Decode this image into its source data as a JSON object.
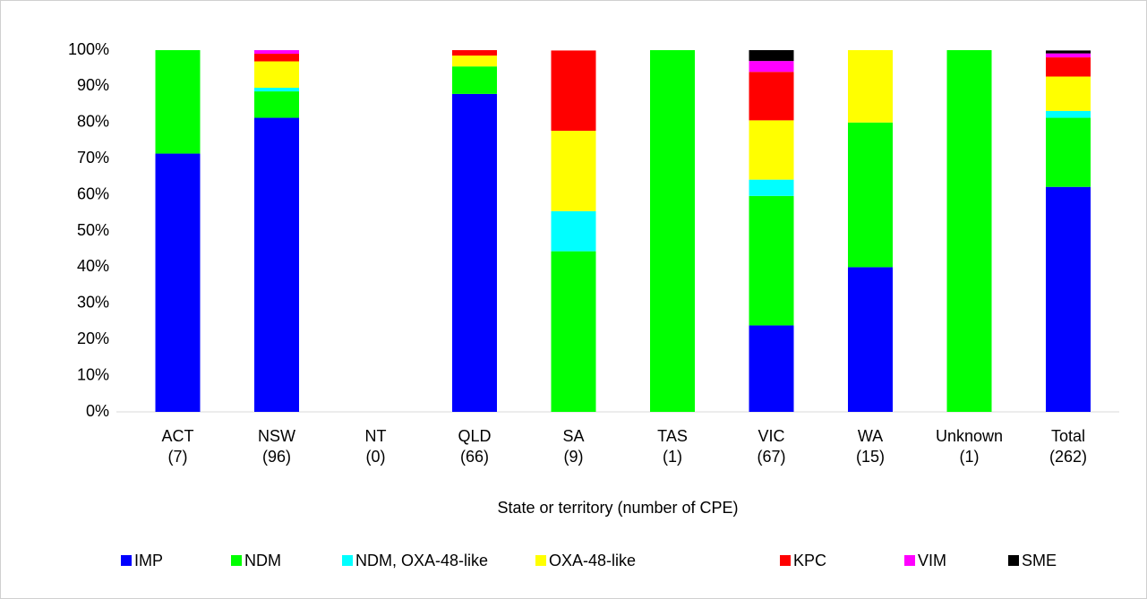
{
  "chart_data": {
    "type": "stacked_bar",
    "x_label": "State or territory (number of CPE)",
    "categories": [
      "ACT\n(7)",
      "NSW\n(96)",
      "NT\n(0)",
      "QLD\n(66)",
      "SA\n(9)",
      "TAS\n(1)",
      "VIC\n(67)",
      "WA\n(15)",
      "Unknown\n(1)",
      "Total\n(262)"
    ],
    "series": [
      {
        "name": "IMP",
        "color": "#0000ff",
        "values": [
          71.4,
          81.3,
          0,
          87.9,
          0,
          0,
          23.9,
          40,
          0,
          62.2
        ]
      },
      {
        "name": "NDM",
        "color": "#00ff00",
        "values": [
          28.6,
          7.3,
          0,
          7.6,
          44.4,
          100,
          35.8,
          40,
          100,
          19.1
        ]
      },
      {
        "name": "NDM, OXA-48-like",
        "color": "#00ffff",
        "values": [
          0,
          1.0,
          0,
          0,
          11.1,
          0,
          4.5,
          0,
          0,
          1.9
        ]
      },
      {
        "name": "OXA-48-like",
        "color": "#ffff00",
        "values": [
          0,
          7.3,
          0,
          3.0,
          22.2,
          0,
          16.4,
          20,
          0,
          9.5
        ]
      },
      {
        "name": "KPC",
        "color": "#ff0000",
        "values": [
          0,
          2.1,
          0,
          1.5,
          22.2,
          0,
          13.4,
          0,
          0,
          5.3
        ]
      },
      {
        "name": "VIM",
        "color": "#ff00ff",
        "values": [
          0,
          1.0,
          0,
          0,
          0,
          0,
          3.0,
          0,
          0,
          1.1
        ]
      },
      {
        "name": "SME",
        "color": "#000000",
        "values": [
          0,
          0,
          0,
          0,
          0,
          0,
          3.0,
          0,
          0,
          0.8
        ]
      }
    ],
    "ylim": [
      0,
      100
    ],
    "yticks": [
      {
        "value": 0,
        "label": "0%"
      },
      {
        "value": 10,
        "label": "10%"
      },
      {
        "value": 20,
        "label": "20%"
      },
      {
        "value": 30,
        "label": "30%"
      },
      {
        "value": 40,
        "label": "40%"
      },
      {
        "value": 50,
        "label": "50%"
      },
      {
        "value": 60,
        "label": "60%"
      },
      {
        "value": 70,
        "label": "70%"
      },
      {
        "value": 80,
        "label": "80%"
      },
      {
        "value": 90,
        "label": "90%"
      },
      {
        "value": 100,
        "label": "100%"
      }
    ],
    "grid": false,
    "legend": "bottom"
  }
}
